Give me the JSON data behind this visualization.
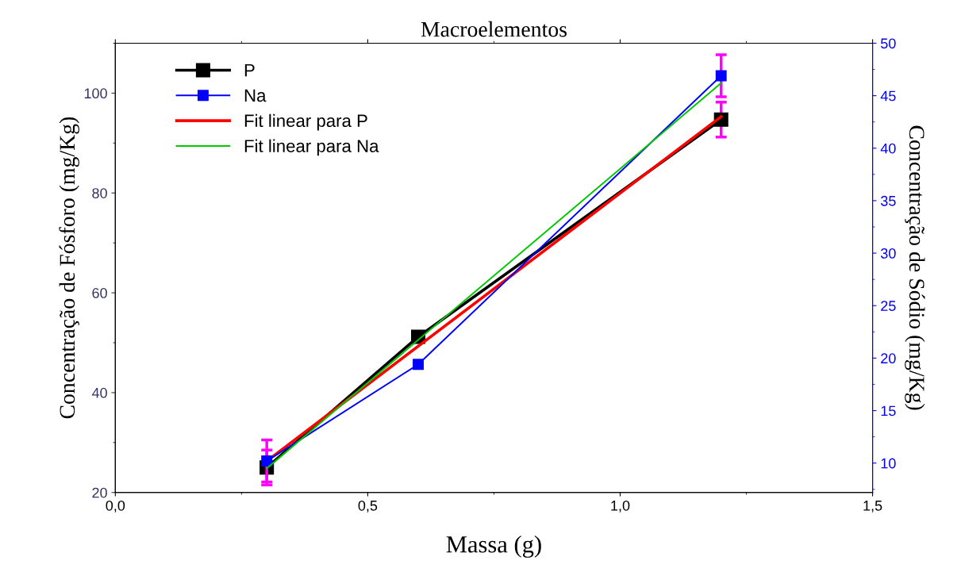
{
  "chart_data": {
    "type": "line",
    "title": "Macroelementos",
    "xlabel": "Massa (g)",
    "ylabel": "Concentração de Fósforo (mg/Kg)",
    "y2label": "Concentração de Sódio (mg/Kg)",
    "xlim": [
      0,
      1.5
    ],
    "xticks": [
      {
        "value": 0,
        "label": "0,0"
      },
      {
        "value": 0.5,
        "label": "0,5"
      },
      {
        "value": 1.0,
        "label": "1,0"
      },
      {
        "value": 1.5,
        "label": "1,5"
      }
    ],
    "ylim": [
      20,
      110
    ],
    "yticks": [
      20,
      40,
      60,
      80,
      100
    ],
    "y2lim": [
      7.2,
      50
    ],
    "y2ticks": [
      10,
      15,
      20,
      25,
      30,
      35,
      40,
      45,
      50
    ],
    "legend": "top left",
    "grid": false,
    "marker": "square",
    "line_style": "solid",
    "series": [
      {
        "name": "P",
        "color": "#000000",
        "x": [
          0.3,
          0.6,
          1.2
        ],
        "values": [
          25.0,
          51.2,
          94.7
        ],
        "errors": [
          3.5,
          null,
          3.5
        ]
      },
      {
        "name": "Na",
        "color": "#0000ff",
        "axis": "y2",
        "x": [
          0.3,
          0.6,
          1.2
        ],
        "values": [
          10.2,
          19.4,
          46.9
        ],
        "errors": [
          2.0,
          null,
          2.0
        ]
      },
      {
        "name": "Fit linear para P",
        "color": "#ff0000",
        "marker": "none",
        "x": [
          0.3,
          1.2
        ],
        "values": [
          26.3,
          95.3
        ]
      },
      {
        "name": "Fit linear para Na",
        "color": "#00c800",
        "marker": "none",
        "axis": "y2",
        "x": [
          0.3,
          1.2
        ],
        "values": [
          9.5,
          46.2
        ]
      }
    ]
  }
}
